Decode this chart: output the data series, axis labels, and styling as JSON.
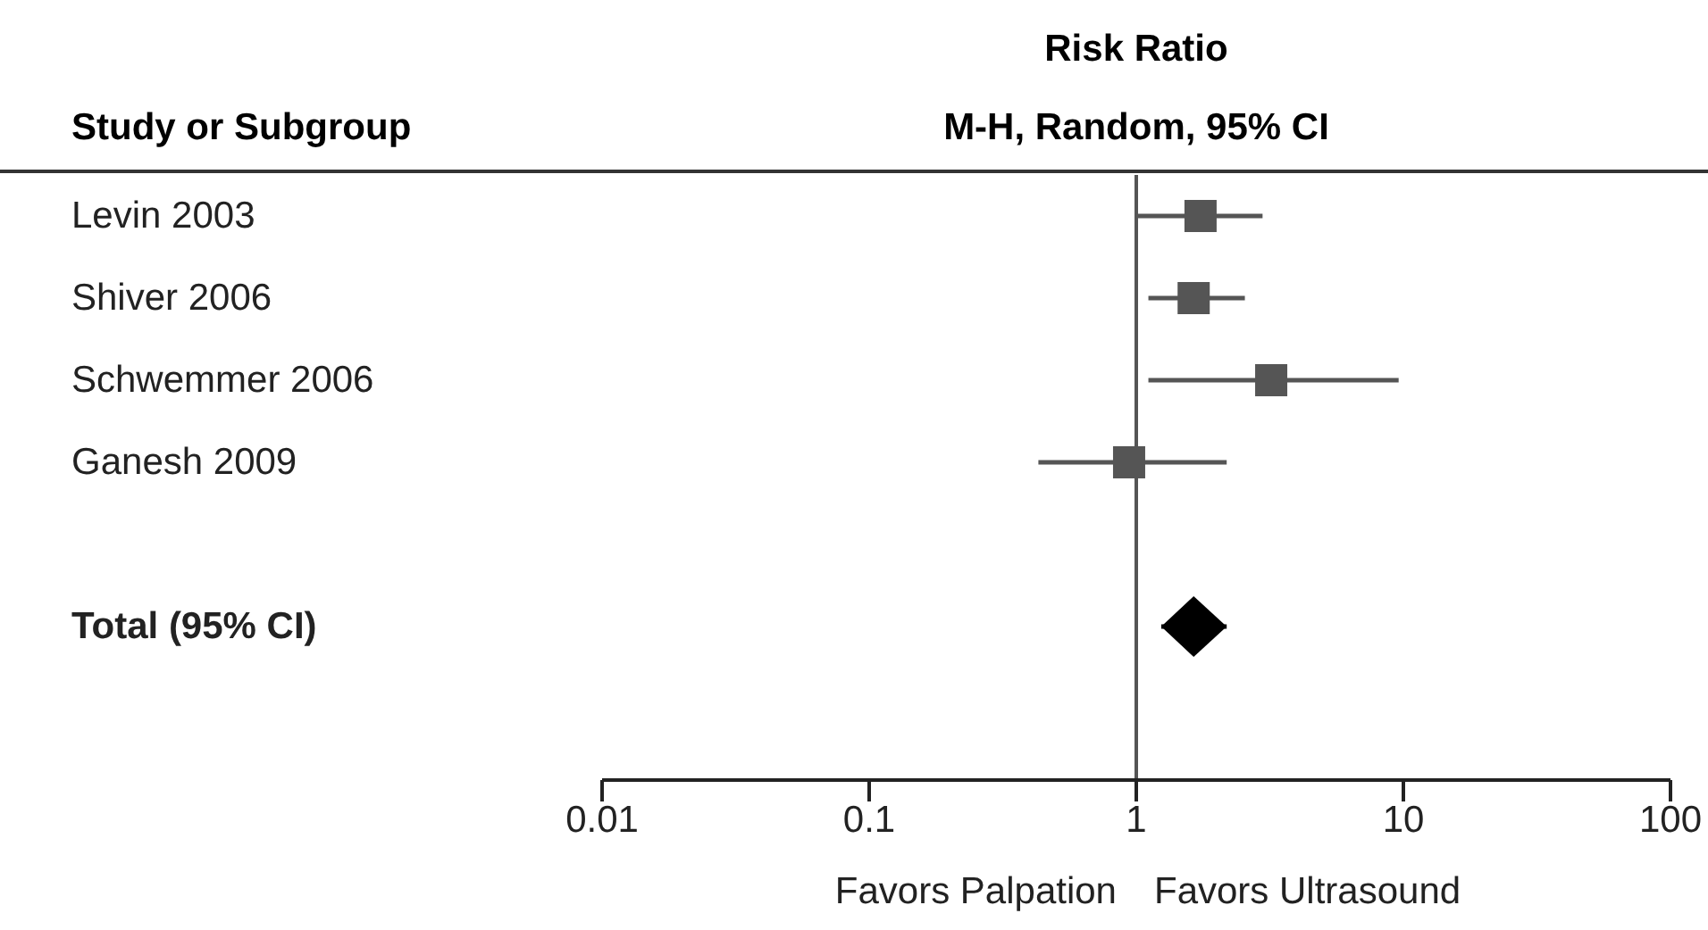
{
  "chart_data": {
    "type": "scatter",
    "orientation": "horizontal",
    "title": "Risk Ratio",
    "subtitle": "M-H, Random, 95% CI",
    "ylabel": "Study or Subgroup",
    "categories": [
      "Levin 2003",
      "Shiver 2006",
      "Schwemmer 2006",
      "Ganesh 2009",
      null,
      "Total (95% CI)"
    ],
    "series": [
      {
        "color": "#555555",
        "marker": "square",
        "values": [
          1.74,
          1.64,
          3.2,
          0.94,
          null,
          null
        ],
        "errors": [
          [
            1.0,
            2.97
          ],
          [
            1.11,
            2.55
          ],
          [
            1.11,
            9.6
          ],
          [
            0.43,
            2.18
          ],
          null,
          null
        ]
      },
      {
        "color": "#000000",
        "marker": "diamond",
        "values": [
          null,
          null,
          null,
          null,
          null,
          1.64
        ],
        "errors": [
          null,
          null,
          null,
          null,
          null,
          [
            1.24,
            2.18
          ]
        ]
      }
    ],
    "log": "x",
    "xlim": [
      0.01,
      100
    ],
    "xticks": [
      0.01,
      0.1,
      1,
      10,
      100
    ],
    "ref_lines": [
      {
        "axis": "x",
        "value": 1
      }
    ],
    "annotations": [
      "Favors Palpation",
      "Favors Ultrasound"
    ]
  }
}
